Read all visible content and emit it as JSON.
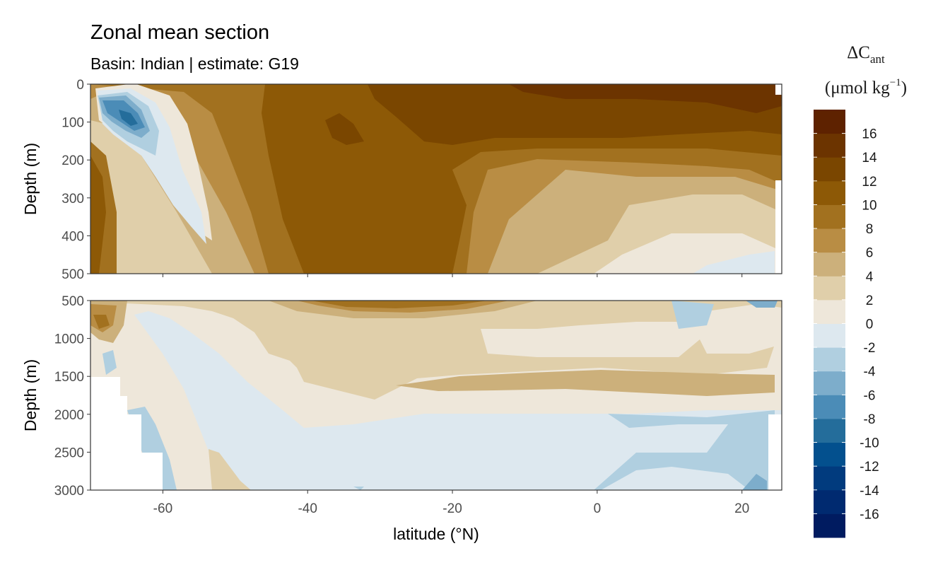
{
  "chart_data": {
    "type": "heatmap",
    "subtype": "filled-contour",
    "title": "Zonal mean section",
    "subtitle": "Basin: Indian | estimate: G19",
    "xlabel": "latitude (°N)",
    "ylabel": "Depth (m)",
    "xlim": [
      -70,
      25.5
    ],
    "x_ticks": [
      -60,
      -40,
      -20,
      0,
      20
    ],
    "x_tick_labels": [
      "-60",
      "-40",
      "-20",
      "0",
      "20"
    ],
    "panels": [
      {
        "name": "upper",
        "ylim": [
          0,
          500
        ],
        "y_ticks": [
          0,
          100,
          200,
          300,
          400,
          500
        ],
        "y_tick_labels": [
          "0",
          "100",
          "200",
          "300",
          "400",
          "500"
        ]
      },
      {
        "name": "lower",
        "ylim": [
          500,
          3000
        ],
        "y_ticks": [
          500,
          1000,
          1500,
          2000,
          2500,
          3000
        ],
        "y_tick_labels": [
          "500",
          "1000",
          "1500",
          "2000",
          "2500",
          "3000"
        ]
      }
    ],
    "legend": {
      "title_main": "ΔC",
      "title_sub": "ant",
      "units_prefix": "(μmol kg",
      "units_sup": "−1",
      "units_suffix": ")",
      "levels": [
        -18,
        -16,
        -14,
        -12,
        -10,
        -8,
        -6,
        -4,
        -2,
        0,
        2,
        4,
        6,
        8,
        10,
        12,
        14,
        16,
        18
      ],
      "labels": [
        "16",
        "14",
        "12",
        "10",
        "8",
        "6",
        "4",
        "2",
        "0",
        "-2",
        "-4",
        "-6",
        "-8",
        "-10",
        "-12",
        "-14",
        "-16"
      ],
      "colors": [
        "#001b60",
        "#002a70",
        "#013b7e",
        "#03508e",
        "#246d9b",
        "#4b8cb7",
        "#7dadcb",
        "#b0cfe0",
        "#dde8ef",
        "#eee7da",
        "#e0cfaa",
        "#ccb07b",
        "#b98d44",
        "#a2711f",
        "#8d5906",
        "#7a4600",
        "#6c3400",
        "#5e2200"
      ]
    },
    "grid": true,
    "legend_position": "right",
    "sample_points": [
      {
        "lat": -66,
        "depth": 20,
        "value": 6
      },
      {
        "lat": -64,
        "depth": 60,
        "value": -5
      },
      {
        "lat": -60,
        "depth": 250,
        "value": 1
      },
      {
        "lat": -55,
        "depth": 300,
        "value": 3
      },
      {
        "lat": -30,
        "depth": 50,
        "value": 14
      },
      {
        "lat": -30,
        "depth": 300,
        "value": 13
      },
      {
        "lat": -10,
        "depth": 50,
        "value": 14
      },
      {
        "lat": 0,
        "depth": 300,
        "value": 5
      },
      {
        "lat": 20,
        "depth": 450,
        "value": 1
      },
      {
        "lat": -28,
        "depth": 550,
        "value": 11
      },
      {
        "lat": -25,
        "depth": 1000,
        "value": 3
      },
      {
        "lat": 10,
        "depth": 1700,
        "value": 4
      },
      {
        "lat": -20,
        "depth": 2500,
        "value": 0
      },
      {
        "lat": 15,
        "depth": 2800,
        "value": -2
      }
    ]
  }
}
